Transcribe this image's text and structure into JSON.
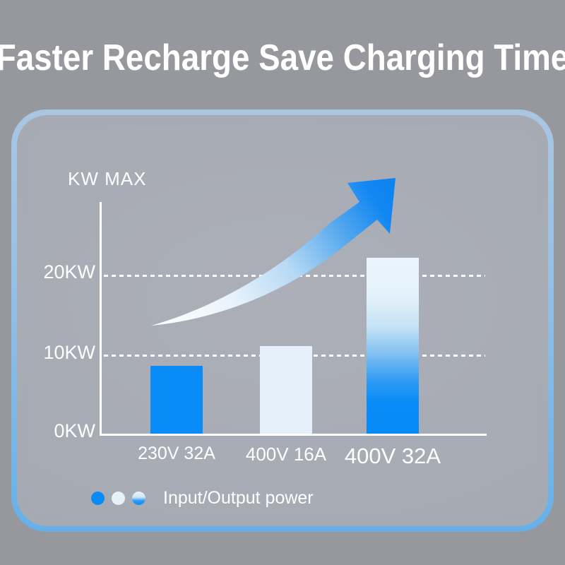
{
  "header": {
    "title": "Faster Recharge Save Charging Time"
  },
  "chart_data": {
    "type": "bar",
    "title": "KW MAX",
    "categories": [
      "230V 32A",
      "400V 16A",
      "400V 32A"
    ],
    "values": [
      8.5,
      11,
      22
    ],
    "unit": "KW",
    "xlabel": "",
    "ylabel": "KW MAX",
    "y_ticks": [
      "20KW",
      "10KW",
      "0KW"
    ],
    "ylim": [
      0,
      29
    ],
    "grid": "horizontal dashed lines at 10KW and 20KW",
    "legend": {
      "label": "Input/Output power",
      "position": "bottom-left",
      "swatches": [
        "solid-blue",
        "light-blue",
        "gradient-light-to-blue"
      ]
    },
    "annotation": "upward curved growth arrow from first bar toward last bar",
    "colors": {
      "bar_230v_32a": "#0a8cf8",
      "bar_400v_16a": "#e4f1fa",
      "bar_400v_32a_top": "#eaf5fc",
      "bar_400v_32a_bottom": "#058af8",
      "arrow_tail": "#ffffff",
      "arrow_head": "#0b82f0",
      "axis_and_text": "#ffffff",
      "panel_border_top": "#a9c6e1",
      "panel_border_bottom": "#66b0e9",
      "panel_background": "#a7abb3",
      "page_background": "#97989d"
    }
  }
}
